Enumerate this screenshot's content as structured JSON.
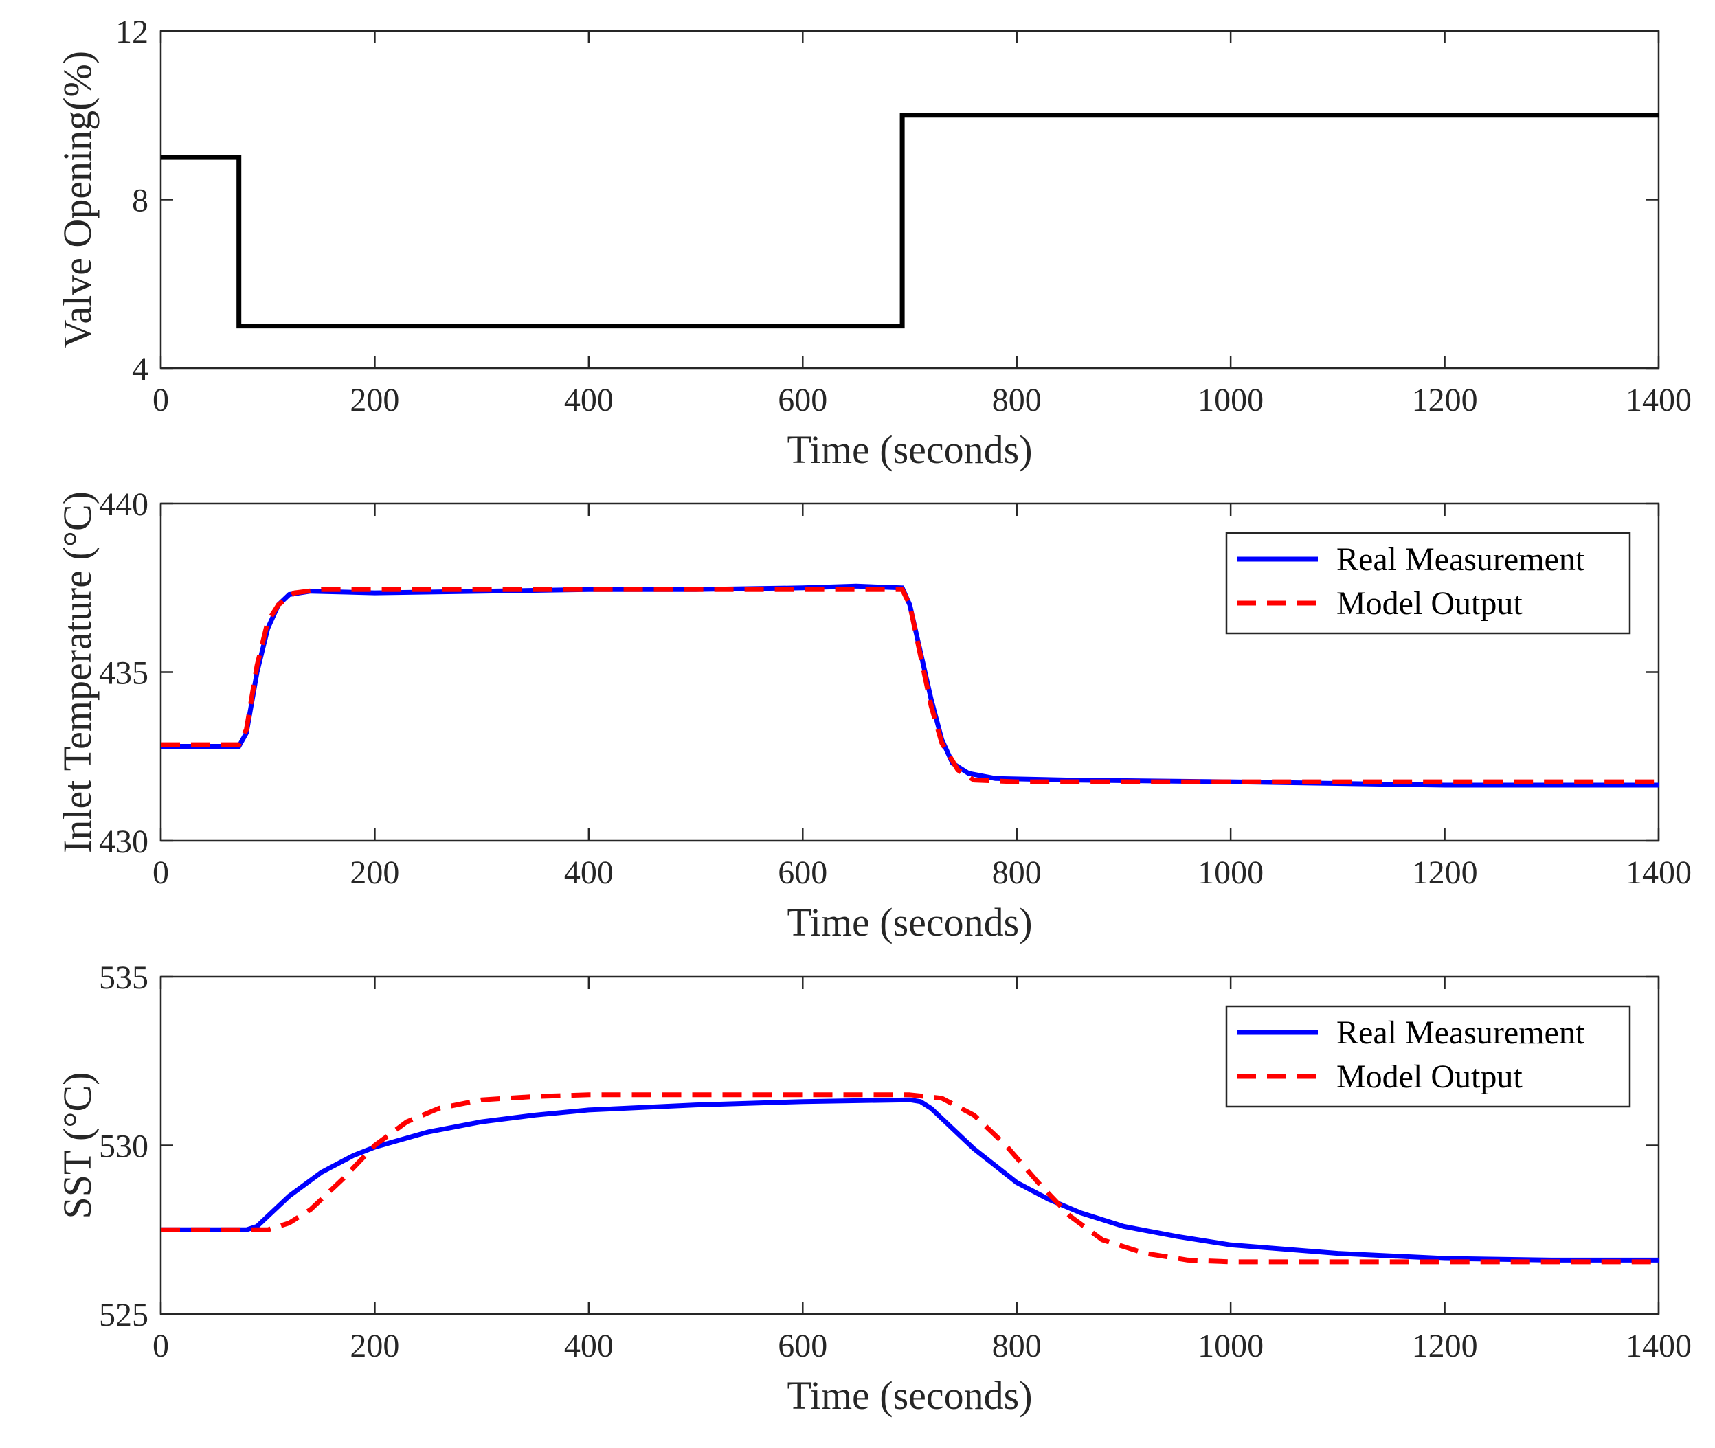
{
  "colors": {
    "axis": "#262626",
    "valve": "#000000",
    "real": "#0000ff",
    "model": "#ff0000",
    "legend_border": "#262626"
  },
  "chart_data": [
    {
      "type": "line",
      "title": "",
      "xlabel": "Time (seconds)",
      "ylabel": "Valve Opening(%)",
      "xlim": [
        0,
        1400
      ],
      "ylim": [
        4,
        12
      ],
      "xticks": [
        0,
        200,
        400,
        600,
        800,
        1000,
        1200,
        1400
      ],
      "xtick_labels": [
        "0",
        "200",
        "400",
        "600",
        "800",
        "1000",
        "1200",
        "1400"
      ],
      "yticks": [
        4,
        8,
        12
      ],
      "ytick_labels": [
        "4",
        "8",
        "12"
      ],
      "legend": null,
      "series": [
        {
          "name": "Valve Opening",
          "color": "#000000",
          "style": "solid",
          "points": [
            [
              0,
              9
            ],
            [
              73,
              9
            ],
            [
              73,
              5
            ],
            [
              693,
              5
            ],
            [
              693,
              10
            ],
            [
              1400,
              10
            ]
          ]
        }
      ]
    },
    {
      "type": "line",
      "title": "",
      "xlabel": "Time (seconds)",
      "ylabel": "Inlet Temperature (°C)",
      "xlim": [
        0,
        1400
      ],
      "ylim": [
        430,
        440
      ],
      "xticks": [
        0,
        200,
        400,
        600,
        800,
        1000,
        1200,
        1400
      ],
      "xtick_labels": [
        "0",
        "200",
        "400",
        "600",
        "800",
        "1000",
        "1200",
        "1400"
      ],
      "yticks": [
        430,
        435,
        440
      ],
      "ytick_labels": [
        "430",
        "435",
        "440"
      ],
      "legend": "top-right",
      "series": [
        {
          "name": "Real Measurement",
          "color": "#0000ff",
          "style": "solid",
          "points": [
            [
              0,
              432.8
            ],
            [
              73,
              432.8
            ],
            [
              80,
              433.2
            ],
            [
              90,
              435.0
            ],
            [
              100,
              436.3
            ],
            [
              110,
              437.0
            ],
            [
              120,
              437.3
            ],
            [
              140,
              437.4
            ],
            [
              200,
              437.35
            ],
            [
              300,
              437.4
            ],
            [
              400,
              437.45
            ],
            [
              500,
              437.45
            ],
            [
              600,
              437.5
            ],
            [
              650,
              437.55
            ],
            [
              693,
              437.5
            ],
            [
              700,
              437.0
            ],
            [
              710,
              435.6
            ],
            [
              720,
              434.2
            ],
            [
              730,
              433.0
            ],
            [
              740,
              432.3
            ],
            [
              755,
              432.0
            ],
            [
              780,
              431.85
            ],
            [
              850,
              431.8
            ],
            [
              1000,
              431.75
            ],
            [
              1100,
              431.7
            ],
            [
              1200,
              431.65
            ],
            [
              1300,
              431.65
            ],
            [
              1400,
              431.65
            ]
          ]
        },
        {
          "name": "Model Output",
          "color": "#ff0000",
          "style": "dashed",
          "points": [
            [
              0,
              432.85
            ],
            [
              73,
              432.85
            ],
            [
              80,
              433.3
            ],
            [
              90,
              435.2
            ],
            [
              100,
              436.5
            ],
            [
              110,
              437.0
            ],
            [
              125,
              437.35
            ],
            [
              150,
              437.45
            ],
            [
              300,
              437.45
            ],
            [
              693,
              437.45
            ],
            [
              700,
              437.0
            ],
            [
              710,
              435.5
            ],
            [
              720,
              434.0
            ],
            [
              730,
              432.9
            ],
            [
              745,
              432.1
            ],
            [
              760,
              431.8
            ],
            [
              800,
              431.75
            ],
            [
              1000,
              431.75
            ],
            [
              1400,
              431.75
            ]
          ]
        }
      ]
    },
    {
      "type": "line",
      "title": "",
      "xlabel": "Time (seconds)",
      "ylabel": "SST (°C)",
      "xlim": [
        0,
        1400
      ],
      "ylim": [
        525,
        535
      ],
      "xticks": [
        0,
        200,
        400,
        600,
        800,
        1000,
        1200,
        1400
      ],
      "xtick_labels": [
        "0",
        "200",
        "400",
        "600",
        "800",
        "1000",
        "1200",
        "1400"
      ],
      "yticks": [
        525,
        530,
        535
      ],
      "ytick_labels": [
        "525",
        "530",
        "535"
      ],
      "legend": "top-right",
      "series": [
        {
          "name": "Real Measurement",
          "color": "#0000ff",
          "style": "solid",
          "points": [
            [
              0,
              527.5
            ],
            [
              80,
              527.5
            ],
            [
              90,
              527.6
            ],
            [
              100,
              527.9
            ],
            [
              120,
              528.5
            ],
            [
              150,
              529.2
            ],
            [
              180,
              529.7
            ],
            [
              200,
              529.95
            ],
            [
              250,
              530.4
            ],
            [
              300,
              530.7
            ],
            [
              350,
              530.9
            ],
            [
              400,
              531.05
            ],
            [
              500,
              531.2
            ],
            [
              600,
              531.3
            ],
            [
              700,
              531.35
            ],
            [
              710,
              531.3
            ],
            [
              720,
              531.1
            ],
            [
              740,
              530.5
            ],
            [
              760,
              529.9
            ],
            [
              780,
              529.4
            ],
            [
              800,
              528.9
            ],
            [
              830,
              528.4
            ],
            [
              860,
              528.0
            ],
            [
              900,
              527.6
            ],
            [
              950,
              527.3
            ],
            [
              1000,
              527.05
            ],
            [
              1100,
              526.8
            ],
            [
              1200,
              526.65
            ],
            [
              1300,
              526.6
            ],
            [
              1400,
              526.6
            ]
          ]
        },
        {
          "name": "Model Output",
          "color": "#ff0000",
          "style": "dashed",
          "points": [
            [
              0,
              527.5
            ],
            [
              100,
              527.5
            ],
            [
              120,
              527.7
            ],
            [
              140,
              528.1
            ],
            [
              170,
              529.0
            ],
            [
              200,
              530.0
            ],
            [
              230,
              530.7
            ],
            [
              260,
              531.1
            ],
            [
              300,
              531.35
            ],
            [
              350,
              531.45
            ],
            [
              400,
              531.5
            ],
            [
              700,
              531.5
            ],
            [
              730,
              531.4
            ],
            [
              760,
              530.9
            ],
            [
              790,
              530.0
            ],
            [
              820,
              528.9
            ],
            [
              850,
              527.9
            ],
            [
              880,
              527.2
            ],
            [
              920,
              526.8
            ],
            [
              960,
              526.6
            ],
            [
              1000,
              526.55
            ],
            [
              1400,
              526.55
            ]
          ]
        }
      ]
    }
  ]
}
